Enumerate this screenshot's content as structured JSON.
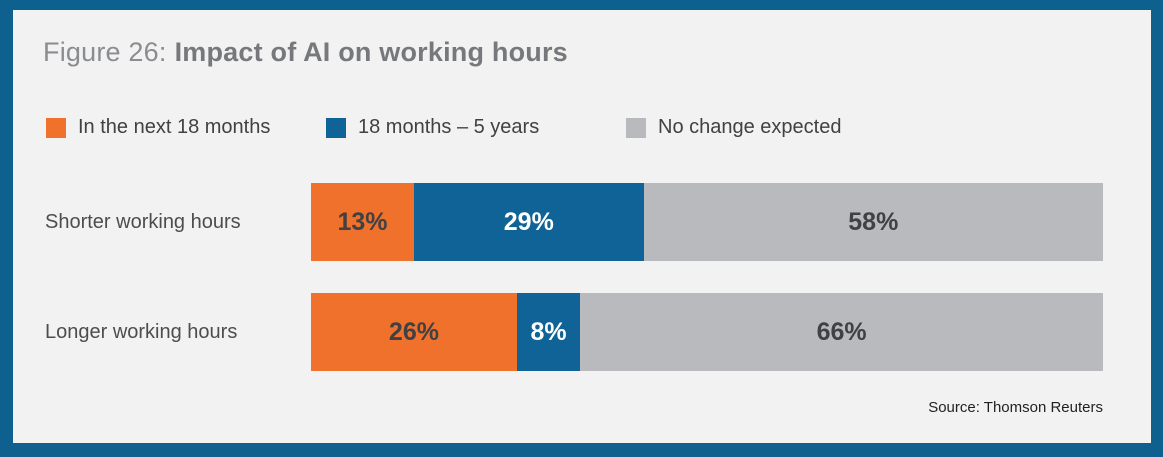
{
  "title": {
    "prefix": "Figure 26:",
    "main": "Impact of AI on working hours"
  },
  "chart_data": {
    "type": "bar",
    "orientation": "horizontal",
    "stacked": true,
    "unit": "%",
    "xlim": [
      0,
      100
    ],
    "legend_position": "top",
    "grid": false,
    "categories": [
      "Shorter working hours",
      "Longer working hours"
    ],
    "series": [
      {
        "name": "In the next 18 months",
        "color": "#f0712b",
        "label_color": "#414042",
        "values": [
          13,
          26
        ]
      },
      {
        "name": "18 months – 5 years",
        "color": "#0f6396",
        "label_color": "#ffffff",
        "values": [
          29,
          8
        ]
      },
      {
        "name": "No change expected",
        "color": "#b9babd",
        "label_color": "#414042",
        "values": [
          58,
          66
        ]
      }
    ]
  },
  "source": "Source: Thomson Reuters",
  "colors": {
    "frame": "#0e618e",
    "panel_background": "#f2f2f2"
  }
}
